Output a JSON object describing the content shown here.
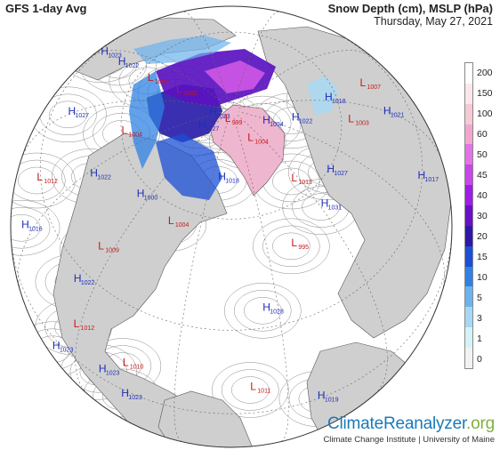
{
  "header": {
    "model_title": "GFS 1-day Avg",
    "variable_title": "Snow Depth (cm), MSLP (hPa)",
    "date": "Thursday, May 27, 2021"
  },
  "legend": {
    "units": "cm",
    "levels": [
      {
        "label": "200",
        "color": "#ffffff"
      },
      {
        "label": "150",
        "color": "#fbe7ea"
      },
      {
        "label": "100",
        "color": "#f6c9d3"
      },
      {
        "label": "60",
        "color": "#f2a6cf"
      },
      {
        "label": "50",
        "color": "#e173e6"
      },
      {
        "label": "45",
        "color": "#c846ea"
      },
      {
        "label": "40",
        "color": "#9d1ee6"
      },
      {
        "label": "30",
        "color": "#6a10c8"
      },
      {
        "label": "20",
        "color": "#2f17a8"
      },
      {
        "label": "15",
        "color": "#1b4fd6"
      },
      {
        "label": "10",
        "color": "#2f82e3"
      },
      {
        "label": "5",
        "color": "#6bb2ee"
      },
      {
        "label": "3",
        "color": "#a6d8f4"
      },
      {
        "label": "1",
        "color": "#d4f3f8"
      },
      {
        "label": "0",
        "color": "#f2f2f2"
      }
    ]
  },
  "pressure_centers": [
    {
      "type": "L",
      "value": "1000",
      "lon": -160,
      "lat": 74
    },
    {
      "type": "H",
      "value": "1023",
      "lon": -120,
      "lat": 84
    },
    {
      "type": "L",
      "value": "999",
      "lon": -70,
      "lat": 86
    },
    {
      "type": "H",
      "value": "1034",
      "lon": 20,
      "lat": 81
    },
    {
      "type": "H",
      "value": "1022",
      "lon": 38,
      "lat": 74
    },
    {
      "type": "H",
      "value": "1018",
      "lon": 60,
      "lat": 64
    },
    {
      "type": "L",
      "value": "1003",
      "lon": 48,
      "lat": 58
    },
    {
      "type": "L",
      "value": "1007",
      "lon": 70,
      "lat": 50
    },
    {
      "type": "H",
      "value": "1021",
      "lon": 58,
      "lat": 45
    },
    {
      "type": "H",
      "value": "1027",
      "lon": 15,
      "lat": 60
    },
    {
      "type": "L",
      "value": "1013",
      "lon": -5,
      "lat": 65
    },
    {
      "type": "H",
      "value": "1031",
      "lon": 0,
      "lat": 55
    },
    {
      "type": "L",
      "value": "995",
      "lon": -20,
      "lat": 50
    },
    {
      "type": "L",
      "value": "1004",
      "lon": -20,
      "lat": 80
    },
    {
      "type": "H",
      "value": "1027",
      "lon": -105,
      "lat": 80
    },
    {
      "type": "H",
      "value": "1018",
      "lon": -55,
      "lat": 70
    },
    {
      "type": "L",
      "value": "1004",
      "lon": -165,
      "lat": 64
    },
    {
      "type": "L",
      "value": "1004",
      "lon": -130,
      "lat": 60
    },
    {
      "type": "H",
      "value": "1022",
      "lon": -172,
      "lat": 50
    },
    {
      "type": "H",
      "value": "1023",
      "lon": -178,
      "lat": 36
    },
    {
      "type": "H",
      "value": "1027",
      "lon": -150,
      "lat": 40
    },
    {
      "type": "H",
      "value": "1022",
      "lon": -118,
      "lat": 48
    },
    {
      "type": "H",
      "value": "1000",
      "lon": -95,
      "lat": 56
    },
    {
      "type": "L",
      "value": "1004",
      "lon": -75,
      "lat": 55
    },
    {
      "type": "L",
      "value": "1012",
      "lon": -132,
      "lat": 28
    },
    {
      "type": "L",
      "value": "1009",
      "lon": -95,
      "lat": 38
    },
    {
      "type": "H",
      "value": "1022",
      "lon": -97,
      "lat": 25
    },
    {
      "type": "H",
      "value": "1016",
      "lon": -125,
      "lat": 15
    },
    {
      "type": "H",
      "value": "1028",
      "lon": -35,
      "lat": 35
    },
    {
      "type": "H",
      "value": "1017",
      "lon": 40,
      "lat": 32
    },
    {
      "type": "L",
      "value": "1012",
      "lon": -92,
      "lat": 12
    },
    {
      "type": "L",
      "value": "1010",
      "lon": -75,
      "lat": 10
    },
    {
      "type": "L",
      "value": "1011",
      "lon": -40,
      "lat": 10
    },
    {
      "type": "H",
      "value": "1023",
      "lon": -82,
      "lat": 2
    },
    {
      "type": "H",
      "value": "1019",
      "lon": -22,
      "lat": 0
    },
    {
      "type": "H",
      "value": "1023",
      "lon": -100,
      "lat": -8
    },
    {
      "type": "H",
      "value": "1023",
      "lon": -75,
      "lat": -4
    }
  ],
  "branding": {
    "logo_main": "ClimateReanalyzer",
    "logo_suffix": ".org",
    "credit": "Climate Change Institute | University of Maine"
  }
}
